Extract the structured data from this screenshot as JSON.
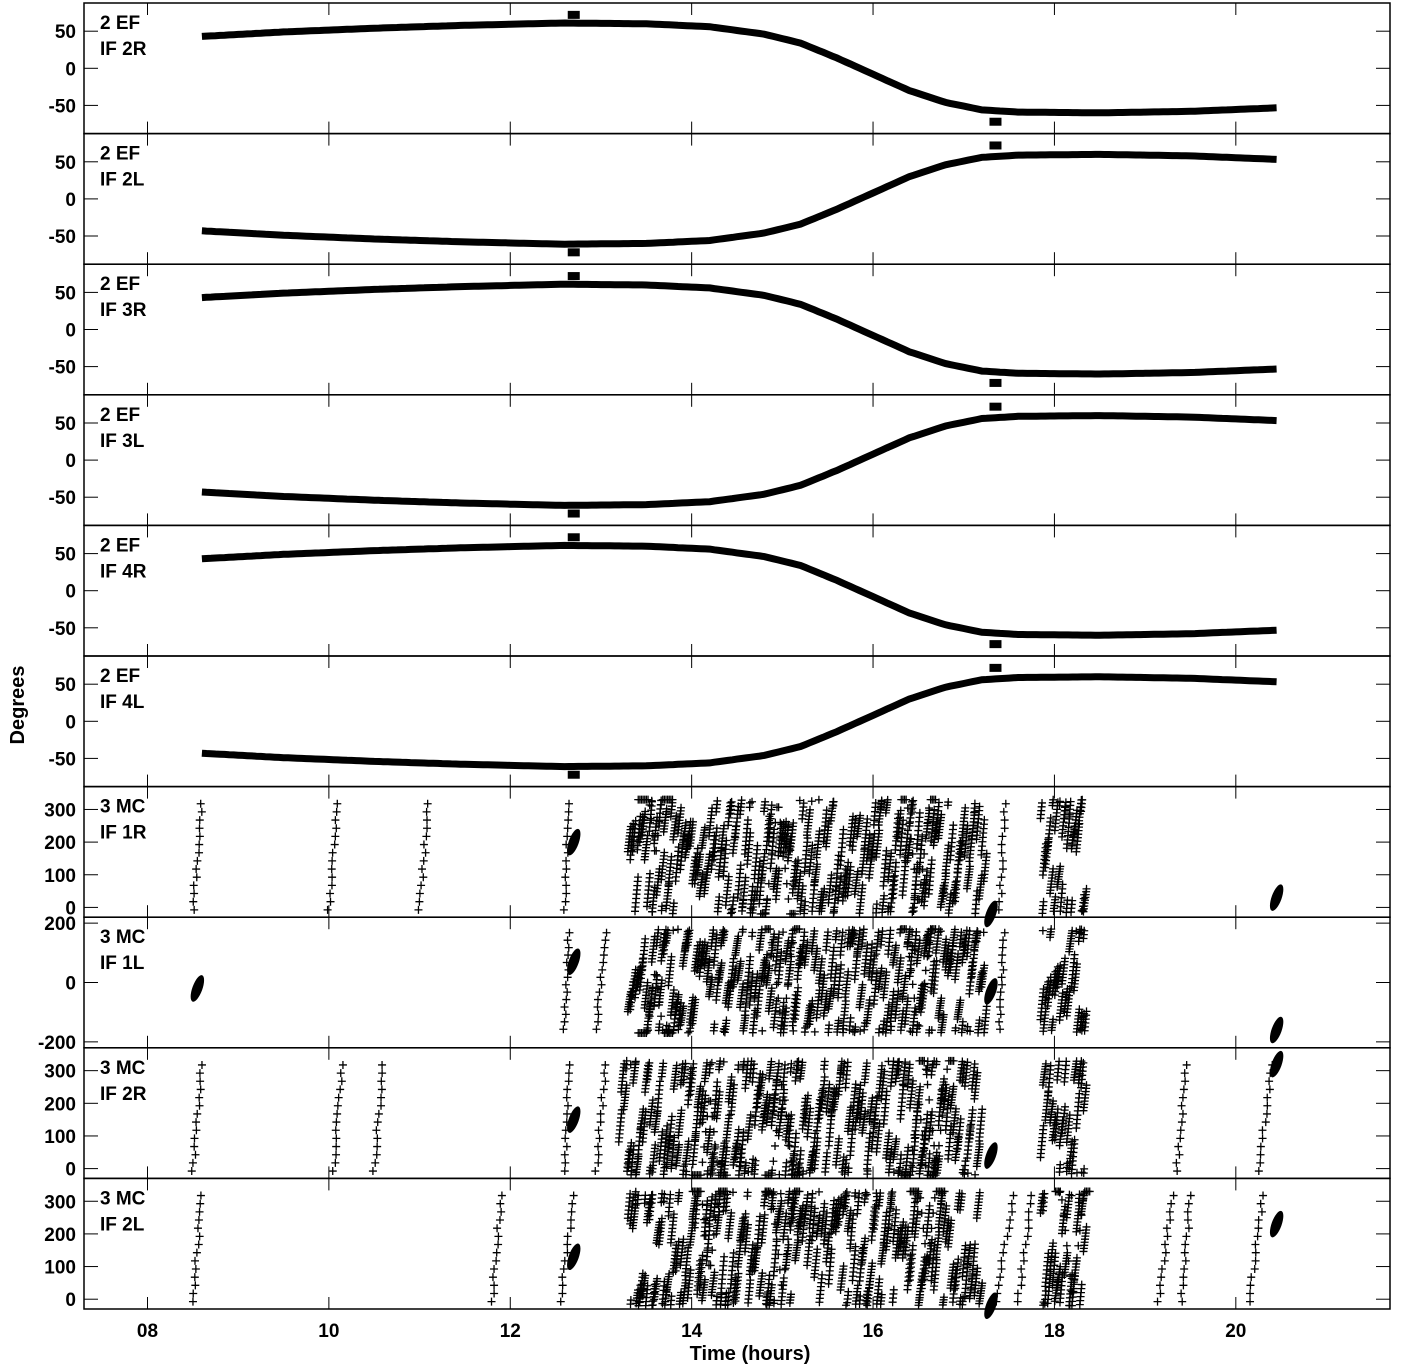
{
  "chart_data": {
    "type": "scatter",
    "xlabel": "Time (hours)",
    "ylabel": "Degrees",
    "xlim": [
      7.3,
      21.7
    ],
    "xticks": [
      8,
      10,
      12,
      14,
      16,
      18,
      20
    ],
    "xtick_labels": [
      "08",
      "10",
      "12",
      "14",
      "16",
      "18",
      "20"
    ],
    "color": "#000000",
    "panels": [
      {
        "label1": "2 EF",
        "label2": "IF 2R",
        "kind": "smooth",
        "sign": 1,
        "ylim": [
          -88,
          88
        ],
        "yticks": [
          50,
          0,
          -50
        ],
        "ytick_labels": [
          "50",
          "0",
          "-50"
        ],
        "curve": [
          [
            8.6,
            43
          ],
          [
            9.5,
            49
          ],
          [
            10.5,
            54
          ],
          [
            11.5,
            58
          ],
          [
            12.6,
            61
          ],
          [
            13.5,
            60
          ],
          [
            14.2,
            56
          ],
          [
            14.8,
            46
          ],
          [
            15.2,
            34
          ],
          [
            15.6,
            14
          ],
          [
            16.0,
            -8
          ],
          [
            16.4,
            -30
          ],
          [
            16.8,
            -46
          ],
          [
            17.2,
            -56
          ],
          [
            17.6,
            -59
          ],
          [
            18.5,
            -60
          ],
          [
            19.5,
            -58
          ],
          [
            20.5,
            -53
          ]
        ],
        "markers": [
          [
            12.7,
            72
          ],
          [
            17.35,
            -72
          ]
        ]
      },
      {
        "label1": "2 EF",
        "label2": "IF 2L",
        "kind": "smooth",
        "sign": -1,
        "ylim": [
          -88,
          88
        ],
        "yticks": [
          50,
          0,
          -50
        ],
        "ytick_labels": [
          "50",
          "0",
          "-50"
        ],
        "curve": [
          [
            8.6,
            43
          ],
          [
            9.5,
            49
          ],
          [
            10.5,
            54
          ],
          [
            11.5,
            58
          ],
          [
            12.6,
            61
          ],
          [
            13.5,
            60
          ],
          [
            14.2,
            56
          ],
          [
            14.8,
            46
          ],
          [
            15.2,
            34
          ],
          [
            15.6,
            14
          ],
          [
            16.0,
            -8
          ],
          [
            16.4,
            -30
          ],
          [
            16.8,
            -46
          ],
          [
            17.2,
            -56
          ],
          [
            17.6,
            -59
          ],
          [
            18.5,
            -60
          ],
          [
            19.5,
            -58
          ],
          [
            20.5,
            -53
          ]
        ],
        "markers": [
          [
            12.7,
            72
          ],
          [
            17.35,
            -72
          ]
        ]
      },
      {
        "label1": "2 EF",
        "label2": "IF 3R",
        "kind": "smooth",
        "sign": 1,
        "ylim": [
          -88,
          88
        ],
        "yticks": [
          50,
          0,
          -50
        ],
        "ytick_labels": [
          "50",
          "0",
          "-50"
        ],
        "curve": [
          [
            8.6,
            43
          ],
          [
            9.5,
            49
          ],
          [
            10.5,
            54
          ],
          [
            11.5,
            58
          ],
          [
            12.6,
            61
          ],
          [
            13.5,
            60
          ],
          [
            14.2,
            56
          ],
          [
            14.8,
            46
          ],
          [
            15.2,
            34
          ],
          [
            15.6,
            14
          ],
          [
            16.0,
            -8
          ],
          [
            16.4,
            -30
          ],
          [
            16.8,
            -46
          ],
          [
            17.2,
            -56
          ],
          [
            17.6,
            -59
          ],
          [
            18.5,
            -60
          ],
          [
            19.5,
            -58
          ],
          [
            20.5,
            -53
          ]
        ],
        "markers": [
          [
            12.7,
            72
          ],
          [
            17.35,
            -72
          ]
        ]
      },
      {
        "label1": "2 EF",
        "label2": "IF 3L",
        "kind": "smooth",
        "sign": -1,
        "ylim": [
          -88,
          88
        ],
        "yticks": [
          50,
          0,
          -50
        ],
        "ytick_labels": [
          "50",
          "0",
          "-50"
        ],
        "curve": [
          [
            8.6,
            43
          ],
          [
            9.5,
            49
          ],
          [
            10.5,
            54
          ],
          [
            11.5,
            58
          ],
          [
            12.6,
            61
          ],
          [
            13.5,
            60
          ],
          [
            14.2,
            56
          ],
          [
            14.8,
            46
          ],
          [
            15.2,
            34
          ],
          [
            15.6,
            14
          ],
          [
            16.0,
            -8
          ],
          [
            16.4,
            -30
          ],
          [
            16.8,
            -46
          ],
          [
            17.2,
            -56
          ],
          [
            17.6,
            -59
          ],
          [
            18.5,
            -60
          ],
          [
            19.5,
            -58
          ],
          [
            20.5,
            -53
          ]
        ],
        "markers": [
          [
            12.7,
            72
          ],
          [
            17.35,
            -72
          ]
        ]
      },
      {
        "label1": "2 EF",
        "label2": "IF 4R",
        "kind": "smooth",
        "sign": 1,
        "ylim": [
          -88,
          88
        ],
        "yticks": [
          50,
          0,
          -50
        ],
        "ytick_labels": [
          "50",
          "0",
          "-50"
        ],
        "curve": [
          [
            8.6,
            43
          ],
          [
            9.5,
            49
          ],
          [
            10.5,
            54
          ],
          [
            11.5,
            58
          ],
          [
            12.6,
            61
          ],
          [
            13.5,
            60
          ],
          [
            14.2,
            56
          ],
          [
            14.8,
            46
          ],
          [
            15.2,
            34
          ],
          [
            15.6,
            14
          ],
          [
            16.0,
            -8
          ],
          [
            16.4,
            -30
          ],
          [
            16.8,
            -46
          ],
          [
            17.2,
            -56
          ],
          [
            17.6,
            -59
          ],
          [
            18.5,
            -60
          ],
          [
            19.5,
            -58
          ],
          [
            20.5,
            -53
          ]
        ],
        "markers": [
          [
            12.7,
            72
          ],
          [
            17.35,
            -72
          ]
        ]
      },
      {
        "label1": "2 EF",
        "label2": "IF 4L",
        "kind": "smooth",
        "sign": -1,
        "ylim": [
          -88,
          88
        ],
        "yticks": [
          50,
          0,
          -50
        ],
        "ytick_labels": [
          "50",
          "0",
          "-50"
        ],
        "curve": [
          [
            8.6,
            43
          ],
          [
            9.5,
            49
          ],
          [
            10.5,
            54
          ],
          [
            11.5,
            58
          ],
          [
            12.6,
            61
          ],
          [
            13.5,
            60
          ],
          [
            14.2,
            56
          ],
          [
            14.8,
            46
          ],
          [
            15.2,
            34
          ],
          [
            15.6,
            14
          ],
          [
            16.0,
            -8
          ],
          [
            16.4,
            -30
          ],
          [
            16.8,
            -46
          ],
          [
            17.2,
            -56
          ],
          [
            17.6,
            -59
          ],
          [
            18.5,
            -60
          ],
          [
            19.5,
            -58
          ],
          [
            20.5,
            -53
          ]
        ],
        "markers": [
          [
            12.7,
            72
          ],
          [
            17.35,
            -72
          ]
        ]
      },
      {
        "label1": "3 MC",
        "label2": "IF 1R",
        "kind": "scatter",
        "ylim": [
          -30,
          370
        ],
        "yticks": [
          300,
          200,
          100,
          0
        ],
        "ytick_labels": [
          "300",
          "200",
          "100",
          "0"
        ],
        "wrap": [
          -20,
          330
        ],
        "dense": [
          [
            13.3,
            17.25
          ],
          [
            17.85,
            18.35
          ]
        ],
        "lines": [
          [
            8.5,
            8.6
          ],
          [
            10.0,
            10.1
          ],
          [
            11.0,
            11.1
          ],
          [
            12.6,
            12.65
          ],
          [
            17.4,
            17.45
          ]
        ],
        "blobs": [
          [
            12.7,
            200
          ],
          [
            17.3,
            -20
          ],
          [
            20.45,
            30
          ]
        ],
        "vdips": [
          [
            14.95,
            330
          ],
          [
            16.5,
            0
          ],
          [
            13.6,
            150
          ]
        ]
      },
      {
        "label1": "3 MC",
        "label2": "IF 1L",
        "kind": "scatter",
        "ylim": [
          -220,
          220
        ],
        "yticks": [
          200,
          0,
          -200
        ],
        "ytick_labels": [
          "200",
          "0",
          "-200"
        ],
        "wrap": [
          -170,
          180
        ],
        "dense": [
          [
            13.3,
            17.25
          ],
          [
            17.85,
            18.35
          ]
        ],
        "lines": [
          [
            12.6,
            12.65
          ],
          [
            12.95,
            13.05
          ],
          [
            17.4,
            17.45
          ]
        ],
        "blobs": [
          [
            8.55,
            -20
          ],
          [
            12.7,
            70
          ],
          [
            17.3,
            -30
          ],
          [
            20.45,
            -160
          ]
        ],
        "vdips": [
          [
            15.0,
            -170
          ],
          [
            16.5,
            -170
          ],
          [
            13.6,
            50
          ]
        ]
      },
      {
        "label1": "3 MC",
        "label2": "IF 2R",
        "kind": "scatter",
        "ylim": [
          -30,
          370
        ],
        "yticks": [
          300,
          200,
          100,
          0
        ],
        "ytick_labels": [
          "300",
          "200",
          "100",
          "0"
        ],
        "wrap": [
          -20,
          330
        ],
        "dense": [
          [
            13.2,
            17.2
          ],
          [
            17.85,
            18.35
          ]
        ],
        "lines": [
          [
            8.5,
            8.6
          ],
          [
            10.05,
            10.15
          ],
          [
            10.5,
            10.6
          ],
          [
            12.6,
            12.65
          ],
          [
            12.95,
            13.05
          ],
          [
            19.35,
            19.45
          ],
          [
            20.25,
            20.4
          ]
        ],
        "blobs": [
          [
            12.7,
            150
          ],
          [
            17.3,
            40
          ],
          [
            20.45,
            320
          ]
        ],
        "vdips": [
          [
            14.2,
            230
          ],
          [
            15.0,
            280
          ],
          [
            16.7,
            0
          ],
          [
            16.5,
            220
          ]
        ]
      },
      {
        "label1": "3 MC",
        "label2": "IF 2L",
        "kind": "scatter",
        "ylim": [
          -30,
          370
        ],
        "yticks": [
          300,
          200,
          100,
          0
        ],
        "ytick_labels": [
          "300",
          "200",
          "100",
          "0"
        ],
        "wrap": [
          -20,
          330
        ],
        "dense": [
          [
            13.3,
            17.2
          ],
          [
            17.85,
            18.35
          ]
        ],
        "lines": [
          [
            8.5,
            8.6
          ],
          [
            11.8,
            11.9
          ],
          [
            12.55,
            12.7
          ],
          [
            17.35,
            17.55
          ],
          [
            17.6,
            17.75
          ],
          [
            19.15,
            19.3
          ],
          [
            19.4,
            19.5
          ],
          [
            20.15,
            20.3
          ]
        ],
        "blobs": [
          [
            12.7,
            130
          ],
          [
            17.3,
            -20
          ],
          [
            20.45,
            230
          ]
        ],
        "vdips": [
          [
            14.2,
            80
          ],
          [
            15.0,
            20
          ],
          [
            16.6,
            100
          ],
          [
            18.2,
            0
          ]
        ]
      }
    ]
  }
}
